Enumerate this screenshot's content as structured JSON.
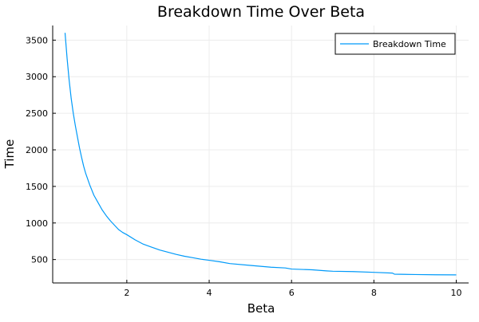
{
  "chart_data": {
    "type": "line",
    "title": "Breakdown Time Over Beta",
    "xlabel": "Beta",
    "ylabel": "Time",
    "xlim": [
      0.2,
      10.3
    ],
    "ylim": [
      180,
      3700
    ],
    "xticks": [
      2,
      4,
      6,
      8,
      10
    ],
    "xtick_labels": [
      "2",
      "4",
      "6",
      "8",
      "10"
    ],
    "yticks": [
      500,
      1000,
      1500,
      2000,
      2500,
      3000,
      3500
    ],
    "ytick_labels": [
      "500",
      "1000",
      "1500",
      "2000",
      "2500",
      "3000",
      "3500"
    ],
    "grid": true,
    "legend_position": "top-right",
    "series": [
      {
        "name": "Breakdown Time",
        "color": "#009af9",
        "x": [
          0.5,
          0.55,
          0.6,
          0.65,
          0.7,
          0.75,
          0.8,
          0.85,
          0.9,
          0.95,
          1.0,
          1.1,
          1.2,
          1.3,
          1.4,
          1.5,
          1.6,
          1.7,
          1.8,
          1.9,
          2.0,
          2.2,
          2.4,
          2.6,
          2.8,
          3.0,
          3.2,
          3.4,
          3.6,
          3.8,
          4.0,
          4.25,
          4.5,
          5.0,
          5.5,
          5.85,
          6.0,
          6.5,
          6.85,
          7.0,
          7.5,
          8.0,
          8.45,
          8.5,
          9.0,
          9.5,
          10.0
        ],
        "values": [
          3600,
          3250,
          2950,
          2700,
          2500,
          2330,
          2180,
          2030,
          1900,
          1780,
          1680,
          1520,
          1380,
          1280,
          1180,
          1100,
          1030,
          970,
          910,
          870,
          840,
          770,
          710,
          670,
          630,
          600,
          570,
          545,
          525,
          505,
          490,
          470,
          445,
          420,
          395,
          385,
          370,
          360,
          345,
          340,
          335,
          325,
          315,
          300,
          295,
          292,
          290
        ]
      }
    ]
  }
}
